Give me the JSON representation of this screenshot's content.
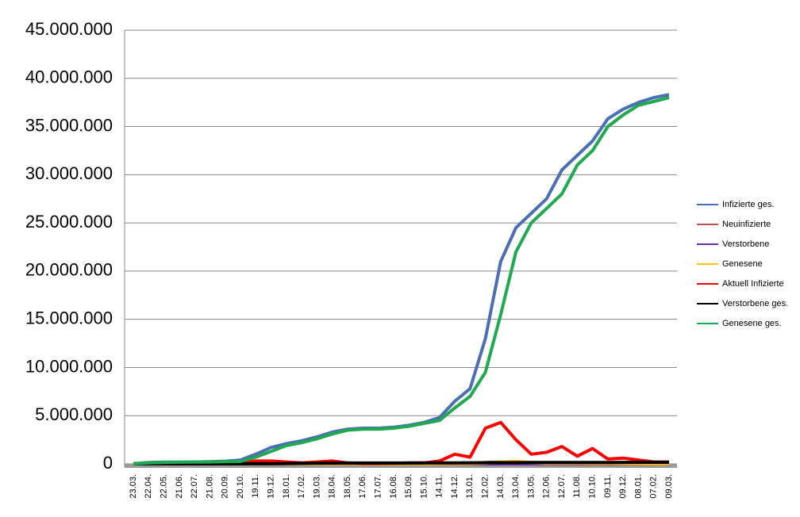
{
  "chart_data": {
    "type": "line",
    "categories": [
      "23.03.",
      "22.04.",
      "22.05.",
      "21.06.",
      "22.07.",
      "21.08.",
      "20.09.",
      "20.10.",
      "19.11.",
      "19.12.",
      "18.01.",
      "17.02.",
      "19.03.",
      "18.04.",
      "18.05.",
      "17.06.",
      "17.07.",
      "16.08.",
      "15.09.",
      "15.10.",
      "14.11.",
      "14.12.",
      "13.01.",
      "12.02.",
      "14.03.",
      "13.04.",
      "13.05.",
      "12.06.",
      "12.07.",
      "11.08.",
      "10.10.",
      "09.11.",
      "09.12.",
      "08.01.",
      "07.02.",
      "09.03."
    ],
    "series": [
      {
        "name": "Infizierte ges.",
        "color": "#4a6fb5",
        "values": [
          20000,
          150000,
          180000,
          190000,
          200000,
          230000,
          280000,
          400000,
          1000000,
          1700000,
          2100000,
          2400000,
          2800000,
          3300000,
          3600000,
          3700000,
          3700000,
          3800000,
          4000000,
          4300000,
          4800000,
          6500000,
          7800000,
          13000000,
          21000000,
          24500000,
          26000000,
          27500000,
          30500000,
          32000000,
          33500000,
          35800000,
          36800000,
          37500000,
          38000000,
          38300000
        ]
      },
      {
        "name": "Neuinfizierte",
        "color": "#c0504d",
        "values": [
          1000,
          2000,
          1000,
          1000,
          1000,
          1000,
          2000,
          10000,
          20000,
          20000,
          15000,
          10000,
          15000,
          20000,
          8000,
          3000,
          2000,
          4000,
          8000,
          10000,
          25000,
          40000,
          30000,
          150000,
          200000,
          100000,
          40000,
          60000,
          80000,
          40000,
          70000,
          30000,
          30000,
          20000,
          10000,
          10000
        ]
      },
      {
        "name": "Verstorbene",
        "color": "#7030a0",
        "values": [
          0,
          100,
          50,
          20,
          20,
          20,
          50,
          200,
          500,
          700,
          800,
          500,
          300,
          400,
          300,
          100,
          50,
          50,
          100,
          200,
          400,
          600,
          500,
          800,
          900,
          700,
          400,
          300,
          300,
          300,
          400,
          500,
          400,
          300,
          200,
          200
        ]
      },
      {
        "name": "Genesene",
        "color": "#ffc000",
        "values": [
          0,
          2000,
          1000,
          1000,
          1000,
          1000,
          2000,
          5000,
          15000,
          20000,
          20000,
          15000,
          12000,
          18000,
          15000,
          5000,
          3000,
          3000,
          6000,
          8000,
          15000,
          30000,
          40000,
          80000,
          200000,
          250000,
          150000,
          60000,
          70000,
          70000,
          50000,
          60000,
          40000,
          30000,
          20000,
          15000
        ]
      },
      {
        "name": "Aktuell Infizierte",
        "color": "#ff0000",
        "values": [
          15000,
          30000,
          20000,
          15000,
          15000,
          20000,
          40000,
          150000,
          300000,
          300000,
          200000,
          100000,
          200000,
          300000,
          100000,
          50000,
          40000,
          60000,
          100000,
          100000,
          300000,
          1000000,
          700000,
          3700000,
          4300000,
          2500000,
          1000000,
          1200000,
          1800000,
          800000,
          1600000,
          500000,
          600000,
          400000,
          200000,
          200000
        ]
      },
      {
        "name": "Verstorbene ges.",
        "color": "#000000",
        "values": [
          0,
          5000,
          8000,
          9000,
          9000,
          9000,
          10000,
          11000,
          16000,
          25000,
          45000,
          65000,
          75000,
          82000,
          87000,
          89000,
          90000,
          91000,
          93000,
          95000,
          100000,
          110000,
          115000,
          123000,
          128000,
          133000,
          136000,
          138000,
          141000,
          144000,
          148000,
          152000,
          158000,
          162000,
          165000,
          167000
        ]
      },
      {
        "name": "Genesene ges.",
        "color": "#1faa4f",
        "values": [
          0,
          100000,
          150000,
          170000,
          180000,
          200000,
          230000,
          250000,
          700000,
          1300000,
          1900000,
          2200000,
          2600000,
          3100000,
          3500000,
          3600000,
          3600000,
          3700000,
          3900000,
          4200000,
          4500000,
          5800000,
          7000000,
          9500000,
          15500000,
          22000000,
          25000000,
          26500000,
          28000000,
          31000000,
          32500000,
          35000000,
          36200000,
          37200000,
          37600000,
          38000000
        ]
      }
    ],
    "ylim": [
      0,
      45000000
    ],
    "yticks": [
      0,
      {
        "value": 5000000,
        "label": "5.000.000"
      },
      {
        "value": 10000000,
        "label": "10.000.000"
      },
      {
        "value": 15000000,
        "label": "15.000.000"
      },
      {
        "value": 20000000,
        "label": "20.000.000"
      },
      {
        "value": 25000000,
        "label": "25.000.000"
      },
      {
        "value": 30000000,
        "label": "30.000.000"
      },
      {
        "value": 35000000,
        "label": "35.000.000"
      },
      {
        "value": 40000000,
        "label": "40.000.000"
      },
      {
        "value": 45000000,
        "label": "45.000.000"
      }
    ],
    "grid": true,
    "legend": "right"
  }
}
